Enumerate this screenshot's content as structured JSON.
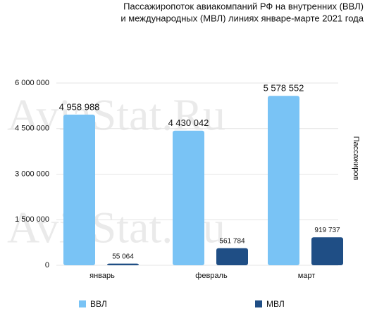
{
  "chart_data": {
    "type": "bar",
    "title": [
      "Пассажиропоток авиакомпаний РФ на внутренних (ВВЛ)",
      "и международных (МВЛ) линиях январе-марте 2021 года"
    ],
    "y_label": "Пассажиров",
    "watermark": "AviaStat.Ru",
    "categories": [
      "январь",
      "февраль",
      "март"
    ],
    "series": [
      {
        "name": "ВВЛ",
        "color": "#79c3f5",
        "values": [
          4958988,
          4430042,
          5578552
        ],
        "value_labels": [
          "4 958 988",
          "4 430 042",
          "5 578 552"
        ]
      },
      {
        "name": "МВЛ",
        "color": "#1f4e85",
        "values": [
          55064,
          561784,
          919737
        ],
        "value_labels": [
          "55 064",
          "561 784",
          "919 737"
        ]
      }
    ],
    "ylim": [
      0,
      6000000
    ],
    "yticks": [
      0,
      {
        "value": 1500000,
        "label": "1 500 000"
      },
      {
        "value": 3000000,
        "label": "3 000 000"
      },
      {
        "value": 4500000,
        "label": "4 500 000"
      },
      {
        "value": 6000000,
        "label": "6 000 000"
      }
    ],
    "grid": true,
    "legend": "bottom"
  }
}
